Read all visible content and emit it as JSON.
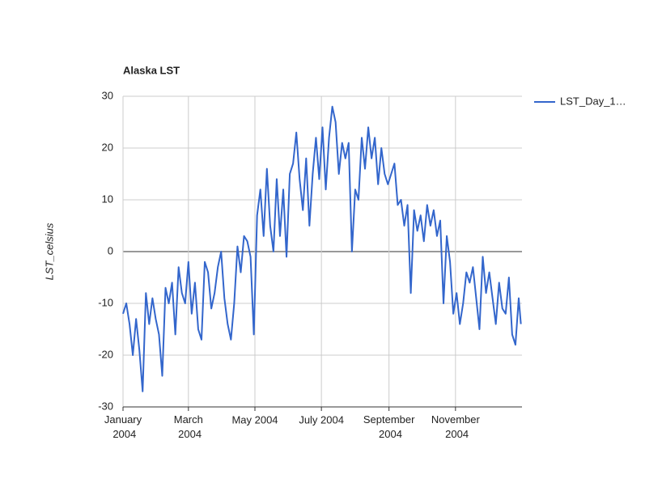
{
  "chart_data": {
    "type": "line",
    "title": "Alaska LST",
    "y_label": "LST_celsius",
    "x": [
      0,
      3,
      6,
      9,
      12,
      15,
      18,
      21,
      24,
      27,
      30,
      33,
      36,
      39,
      42,
      45,
      48,
      51,
      54,
      57,
      60,
      63,
      66,
      69,
      72,
      75,
      78,
      81,
      84,
      87,
      90,
      93,
      96,
      99,
      102,
      105,
      108,
      111,
      114,
      117,
      120,
      123,
      126,
      129,
      132,
      135,
      138,
      141,
      144,
      147,
      150,
      153,
      156,
      159,
      162,
      165,
      168,
      171,
      174,
      177,
      180,
      183,
      186,
      189,
      192,
      195,
      198,
      201,
      204,
      207,
      210,
      213,
      216,
      219,
      222,
      225,
      228,
      231,
      234,
      237,
      240,
      243,
      246,
      249,
      252,
      255,
      258,
      261,
      264,
      267,
      270,
      273,
      276,
      279,
      282,
      285,
      288,
      291,
      294,
      297,
      300,
      303,
      306,
      309,
      312,
      315,
      318,
      321,
      324,
      327,
      330,
      333,
      336,
      339,
      342,
      345,
      348,
      351,
      354,
      357,
      360,
      363,
      365
    ],
    "series": [
      {
        "name": "LST_Day_1…",
        "color": "#3366cc",
        "values": [
          -12,
          -10,
          -14,
          -20,
          -13,
          -19,
          -27,
          -8,
          -14,
          -9,
          -13,
          -16,
          -24,
          -7,
          -10,
          -6,
          -16,
          -3,
          -8,
          -10,
          -2,
          -12,
          -6,
          -15,
          -17,
          -2,
          -4,
          -11,
          -8,
          -3,
          0,
          -9,
          -14,
          -17,
          -10,
          1,
          -4,
          3,
          2,
          -1,
          -16,
          7,
          12,
          3,
          16,
          5,
          0,
          14,
          3,
          12,
          -1,
          15,
          17,
          23,
          14,
          8,
          18,
          5,
          15,
          22,
          14,
          24,
          12,
          22,
          28,
          25,
          15,
          21,
          18,
          21,
          0,
          12,
          10,
          22,
          16,
          24,
          18,
          22,
          13,
          20,
          15,
          13,
          15,
          17,
          9,
          10,
          5,
          9,
          -8,
          8,
          4,
          7,
          2,
          9,
          5,
          8,
          3,
          6,
          -10,
          3,
          -2,
          -12,
          -8,
          -14,
          -10,
          -4,
          -6,
          -3,
          -9,
          -15,
          -1,
          -8,
          -4,
          -9,
          -14,
          -6,
          -11,
          -12,
          -5,
          -16,
          -18,
          -9,
          -14
        ]
      }
    ],
    "xlim": [
      0,
      366
    ],
    "xticks": [
      {
        "value": 0,
        "label": "January 2004"
      },
      {
        "value": 60,
        "label": "March 2004"
      },
      {
        "value": 121,
        "label": "May 2004"
      },
      {
        "value": 182,
        "label": "July 2004"
      },
      {
        "value": 244,
        "label": "September 2004"
      },
      {
        "value": 305,
        "label": "November 2004"
      }
    ],
    "ylim": [
      -30,
      30
    ],
    "yticks": [
      -30,
      -20,
      -10,
      0,
      10,
      20,
      30
    ],
    "grid": true,
    "legend": "right"
  }
}
